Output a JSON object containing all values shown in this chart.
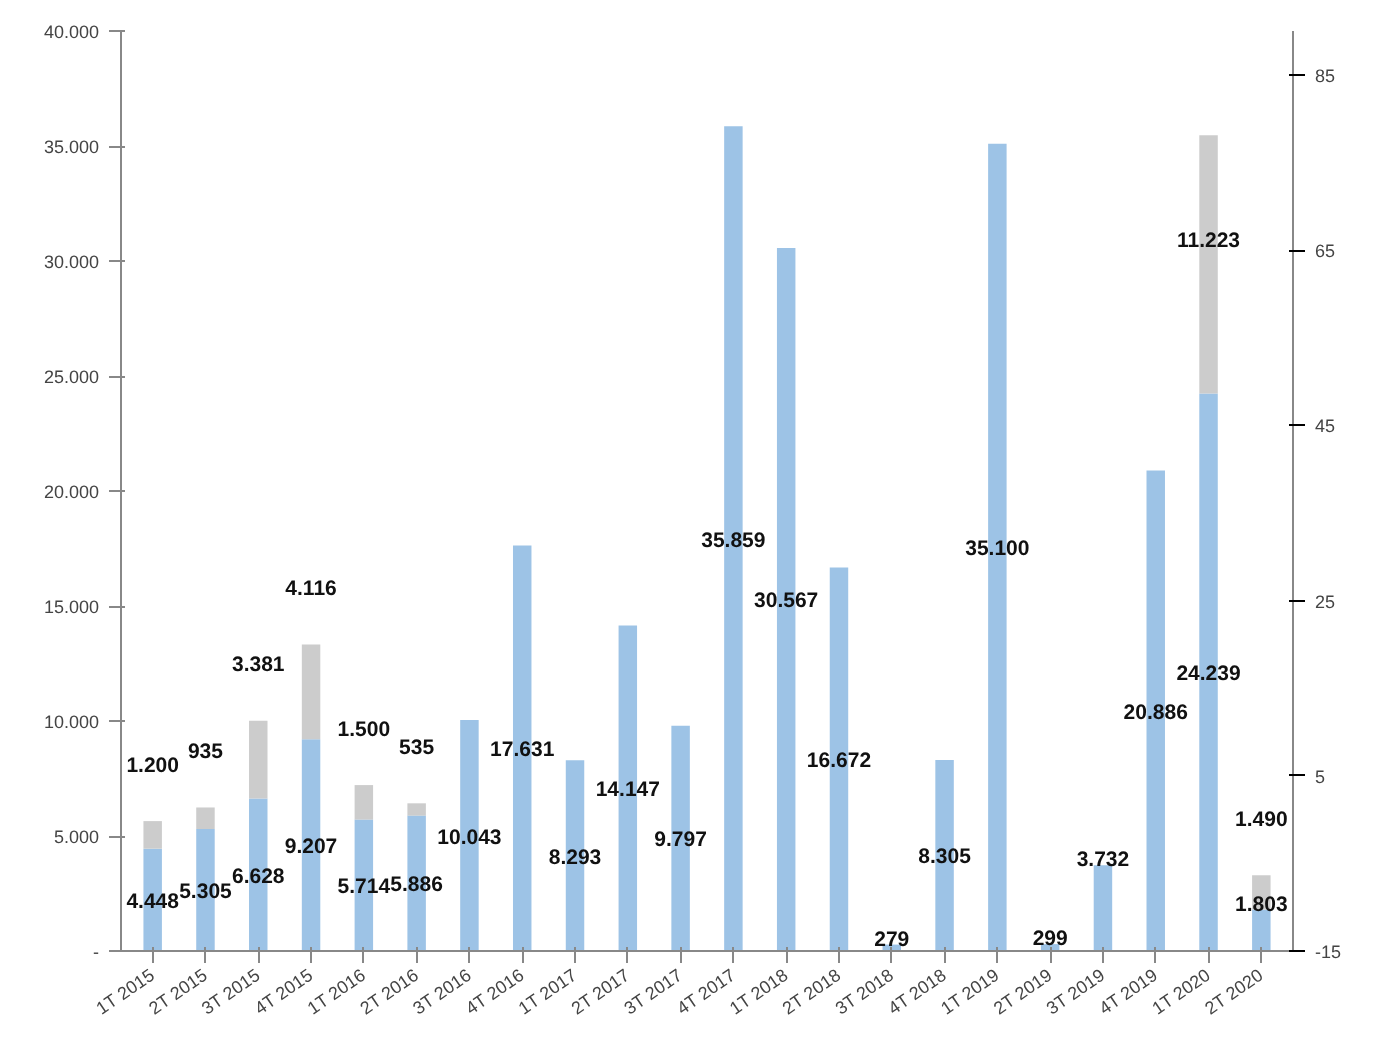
{
  "chart_data": {
    "type": "bar",
    "stacked": true,
    "grid": false,
    "categories": [
      "1T 2015",
      "2T 2015",
      "3T 2015",
      "4T 2015",
      "1T 2016",
      "2T 2016",
      "3T 2016",
      "4T 2016",
      "1T 2017",
      "2T 2017",
      "3T 2017",
      "4T 2017",
      "1T 2018",
      "2T 2018",
      "3T 2018",
      "4T 2018",
      "1T 2019",
      "2T 2019",
      "3T 2019",
      "4T 2019",
      "1T 2020",
      "2T 2020"
    ],
    "series": [
      {
        "color": "#9dc3e6",
        "values": [
          4448,
          5305,
          6628,
          9207,
          5714,
          5886,
          10043,
          17631,
          8293,
          14147,
          9797,
          35859,
          30567,
          16672,
          279,
          8305,
          35100,
          299,
          3732,
          20886,
          24239,
          1803
        ],
        "value_labels": [
          "4.448",
          "5.305",
          "6.628",
          "9.207",
          "5.714",
          "5.886",
          "10.043",
          "17.631",
          "8.293",
          "14.147",
          "9.797",
          "35.859",
          "30.567",
          "16.672",
          "279",
          "8.305",
          "35.100",
          "299",
          "3.732",
          "20.886",
          "24.239",
          "1.803"
        ]
      },
      {
        "color": "#cccccc",
        "values": [
          1200,
          935,
          3381,
          4116,
          1500,
          535,
          null,
          null,
          null,
          null,
          null,
          null,
          null,
          null,
          null,
          null,
          null,
          null,
          null,
          null,
          11223,
          1490
        ],
        "value_labels": [
          "1.200",
          "935",
          "3.381",
          "4.116",
          "1.500",
          "535",
          null,
          null,
          null,
          null,
          null,
          null,
          null,
          null,
          null,
          null,
          null,
          null,
          null,
          null,
          "11.223",
          "1.490"
        ]
      }
    ],
    "ylim": [
      0,
      40000
    ],
    "yticks": [
      {
        "value": 0,
        "label": "-"
      },
      {
        "value": 5000,
        "label": "5.000"
      },
      {
        "value": 10000,
        "label": "10.000"
      },
      {
        "value": 15000,
        "label": "15.000"
      },
      {
        "value": 20000,
        "label": "20.000"
      },
      {
        "value": 25000,
        "label": "25.000"
      },
      {
        "value": 30000,
        "label": "30.000"
      },
      {
        "value": 35000,
        "label": "35.000"
      },
      {
        "value": 40000,
        "label": "40.000"
      }
    ],
    "y2lim": [
      -15,
      90
    ],
    "y2ticks": [
      -15,
      5,
      25,
      45,
      65,
      85
    ]
  }
}
